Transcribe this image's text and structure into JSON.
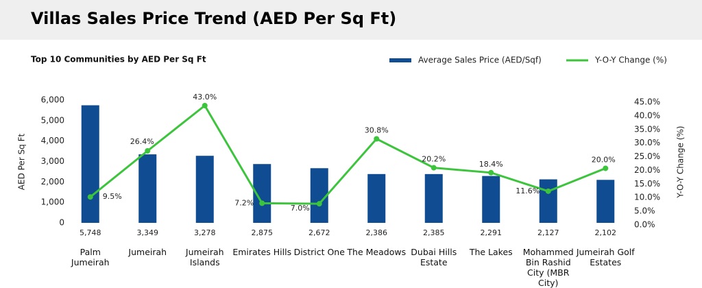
{
  "title": "Villas Sales Price Trend (AED Per Sq Ft)",
  "chart_data": {
    "type": "combo",
    "title": "Top 10 Communities by AED Per Sq Ft",
    "y_label": "AED Per Sq Ft",
    "y2_label": "Y-O-Y Change (%)",
    "categories": [
      "Palm Jumeirah",
      "Jumeirah",
      "Jumeirah Islands",
      "Emirates Hills",
      "District One",
      "The Meadows",
      "Dubai Hills Estate",
      "The Lakes",
      "Mohammed Bin Rashid City (MBR City)",
      "Jumeirah Golf Estates"
    ],
    "series": [
      {
        "name": "Average Sales Price (AED/Sqf)",
        "type": "bar",
        "color": "#0f4c92",
        "values": [
          5748,
          3349,
          3278,
          2875,
          2672,
          2386,
          2385,
          2291,
          2127,
          2102
        ],
        "value_labels": [
          "5,748",
          "3,349",
          "3,278",
          "2,875",
          "2,672",
          "2,386",
          "2,385",
          "2,291",
          "2,127",
          "2,102"
        ]
      },
      {
        "name": "Y-O-Y Change (%)",
        "type": "line",
        "axis": "y2",
        "color": "#3cc43c",
        "values": [
          9.5,
          26.4,
          43.0,
          7.2,
          7.0,
          30.8,
          20.2,
          18.4,
          11.6,
          20.0
        ],
        "value_labels": [
          "9.5%",
          "26.4%",
          "43.0%",
          "7.2%",
          "7.0%",
          "30.8%",
          "20.2%",
          "18.4%",
          "11.6%",
          "20.0%"
        ]
      }
    ],
    "ylim": [
      0,
      6000
    ],
    "yticks": [
      0,
      {
        "value": 1000,
        "label": "1,000"
      },
      {
        "value": 2000,
        "label": "2,000"
      },
      {
        "value": 3000,
        "label": "3,000"
      },
      {
        "value": 4000,
        "label": "4,000"
      },
      {
        "value": 5000,
        "label": "5,000"
      },
      {
        "value": 6000,
        "label": "6,000"
      }
    ],
    "y2lim": [
      0,
      45
    ],
    "y2ticks": [
      {
        "value": 0,
        "label": "0.0%"
      },
      {
        "value": 5,
        "label": "5.0%"
      },
      {
        "value": 10,
        "label": "10.0%"
      },
      {
        "value": 15,
        "label": "15.0%"
      },
      {
        "value": 20,
        "label": "20.0%"
      },
      {
        "value": 25,
        "label": "25.0%"
      },
      {
        "value": 30,
        "label": "30.0%"
      },
      {
        "value": 35,
        "label": "35.0%"
      },
      {
        "value": 40,
        "label": "40.0%"
      },
      {
        "value": 45,
        "label": "45.0%"
      }
    ],
    "grid": false,
    "legend": "top-right"
  }
}
